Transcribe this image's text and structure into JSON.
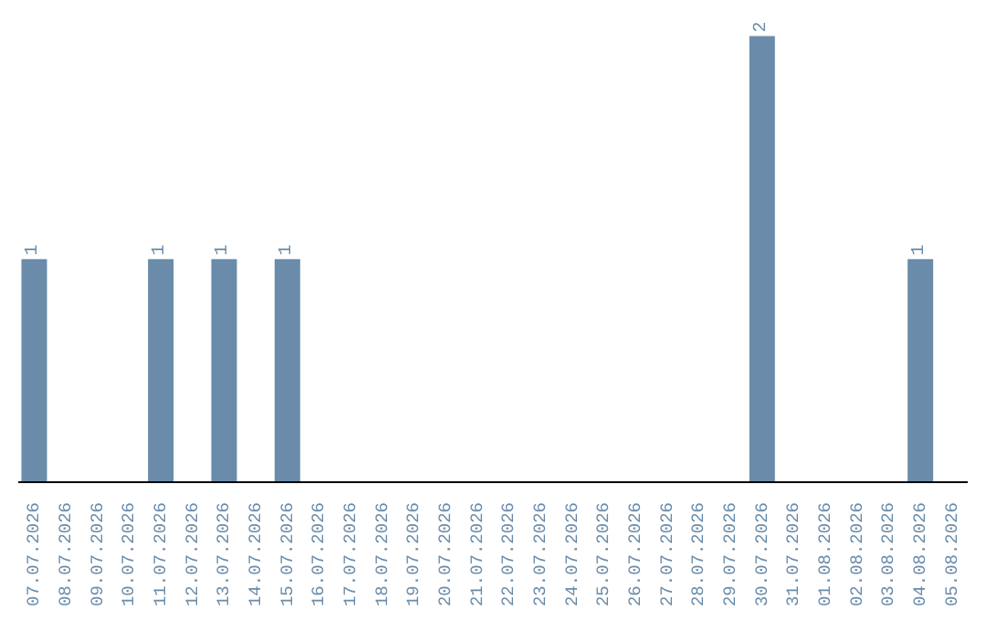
{
  "chart_data": {
    "type": "bar",
    "categories": [
      "07.07.2026",
      "08.07.2026",
      "09.07.2026",
      "10.07.2026",
      "11.07.2026",
      "12.07.2026",
      "13.07.2026",
      "14.07.2026",
      "15.07.2026",
      "16.07.2026",
      "17.07.2026",
      "18.07.2026",
      "19.07.2026",
      "20.07.2026",
      "21.07.2026",
      "22.07.2026",
      "23.07.2026",
      "24.07.2026",
      "25.07.2026",
      "26.07.2026",
      "27.07.2026",
      "28.07.2026",
      "29.07.2026",
      "30.07.2026",
      "31.07.2026",
      "01.08.2026",
      "02.08.2026",
      "03.08.2026",
      "04.08.2026",
      "05.08.2026"
    ],
    "values": [
      1,
      0,
      0,
      0,
      1,
      0,
      1,
      0,
      1,
      0,
      0,
      0,
      0,
      0,
      0,
      0,
      0,
      0,
      0,
      0,
      0,
      0,
      0,
      2,
      0,
      0,
      0,
      0,
      1,
      0
    ],
    "value_labels": [
      "1",
      null,
      null,
      null,
      "1",
      null,
      "1",
      null,
      "1",
      null,
      null,
      null,
      null,
      null,
      null,
      null,
      null,
      null,
      null,
      null,
      null,
      null,
      null,
      "2",
      null,
      null,
      null,
      null,
      "1",
      null
    ],
    "color": "#6a8caa",
    "grid": false,
    "legend": false
  }
}
